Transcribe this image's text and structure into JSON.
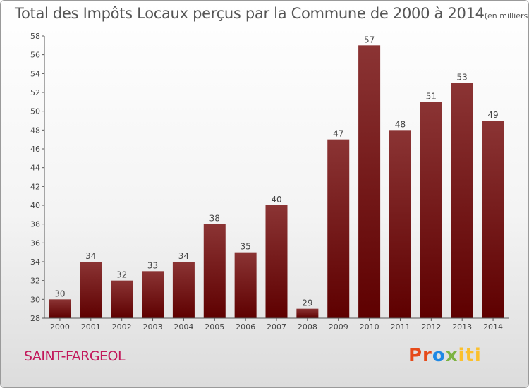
{
  "header": {
    "title": "Total des Impôts Locaux perçus par la Commune de 2000 à 2014",
    "unit": "(en milliers d'€)"
  },
  "footer": {
    "commune": "SAINT-FARGEOL",
    "logo": {
      "p1": "Pr",
      "p2": "o",
      "p3": "x",
      "p4": "iti"
    }
  },
  "chart_data": {
    "type": "bar",
    "title": "Total des Impôts Locaux perçus par la Commune de 2000 à 2014",
    "subtitle": "(en milliers d'€)",
    "categories": [
      "2000",
      "2001",
      "2002",
      "2003",
      "2004",
      "2005",
      "2006",
      "2007",
      "2008",
      "2009",
      "2010",
      "2011",
      "2012",
      "2013",
      "2014"
    ],
    "values": [
      30,
      34,
      32,
      33,
      34,
      38,
      35,
      40,
      29,
      47,
      57,
      48,
      51,
      53,
      49
    ],
    "ylim": [
      28,
      58
    ],
    "yticks": [
      28,
      30,
      32,
      34,
      36,
      38,
      40,
      42,
      44,
      46,
      48,
      50,
      52,
      54,
      56,
      58
    ],
    "grid": false,
    "colors": {
      "bar_top": "#8b3434",
      "bar_bottom": "#5e0000",
      "axis": "#555555"
    }
  }
}
